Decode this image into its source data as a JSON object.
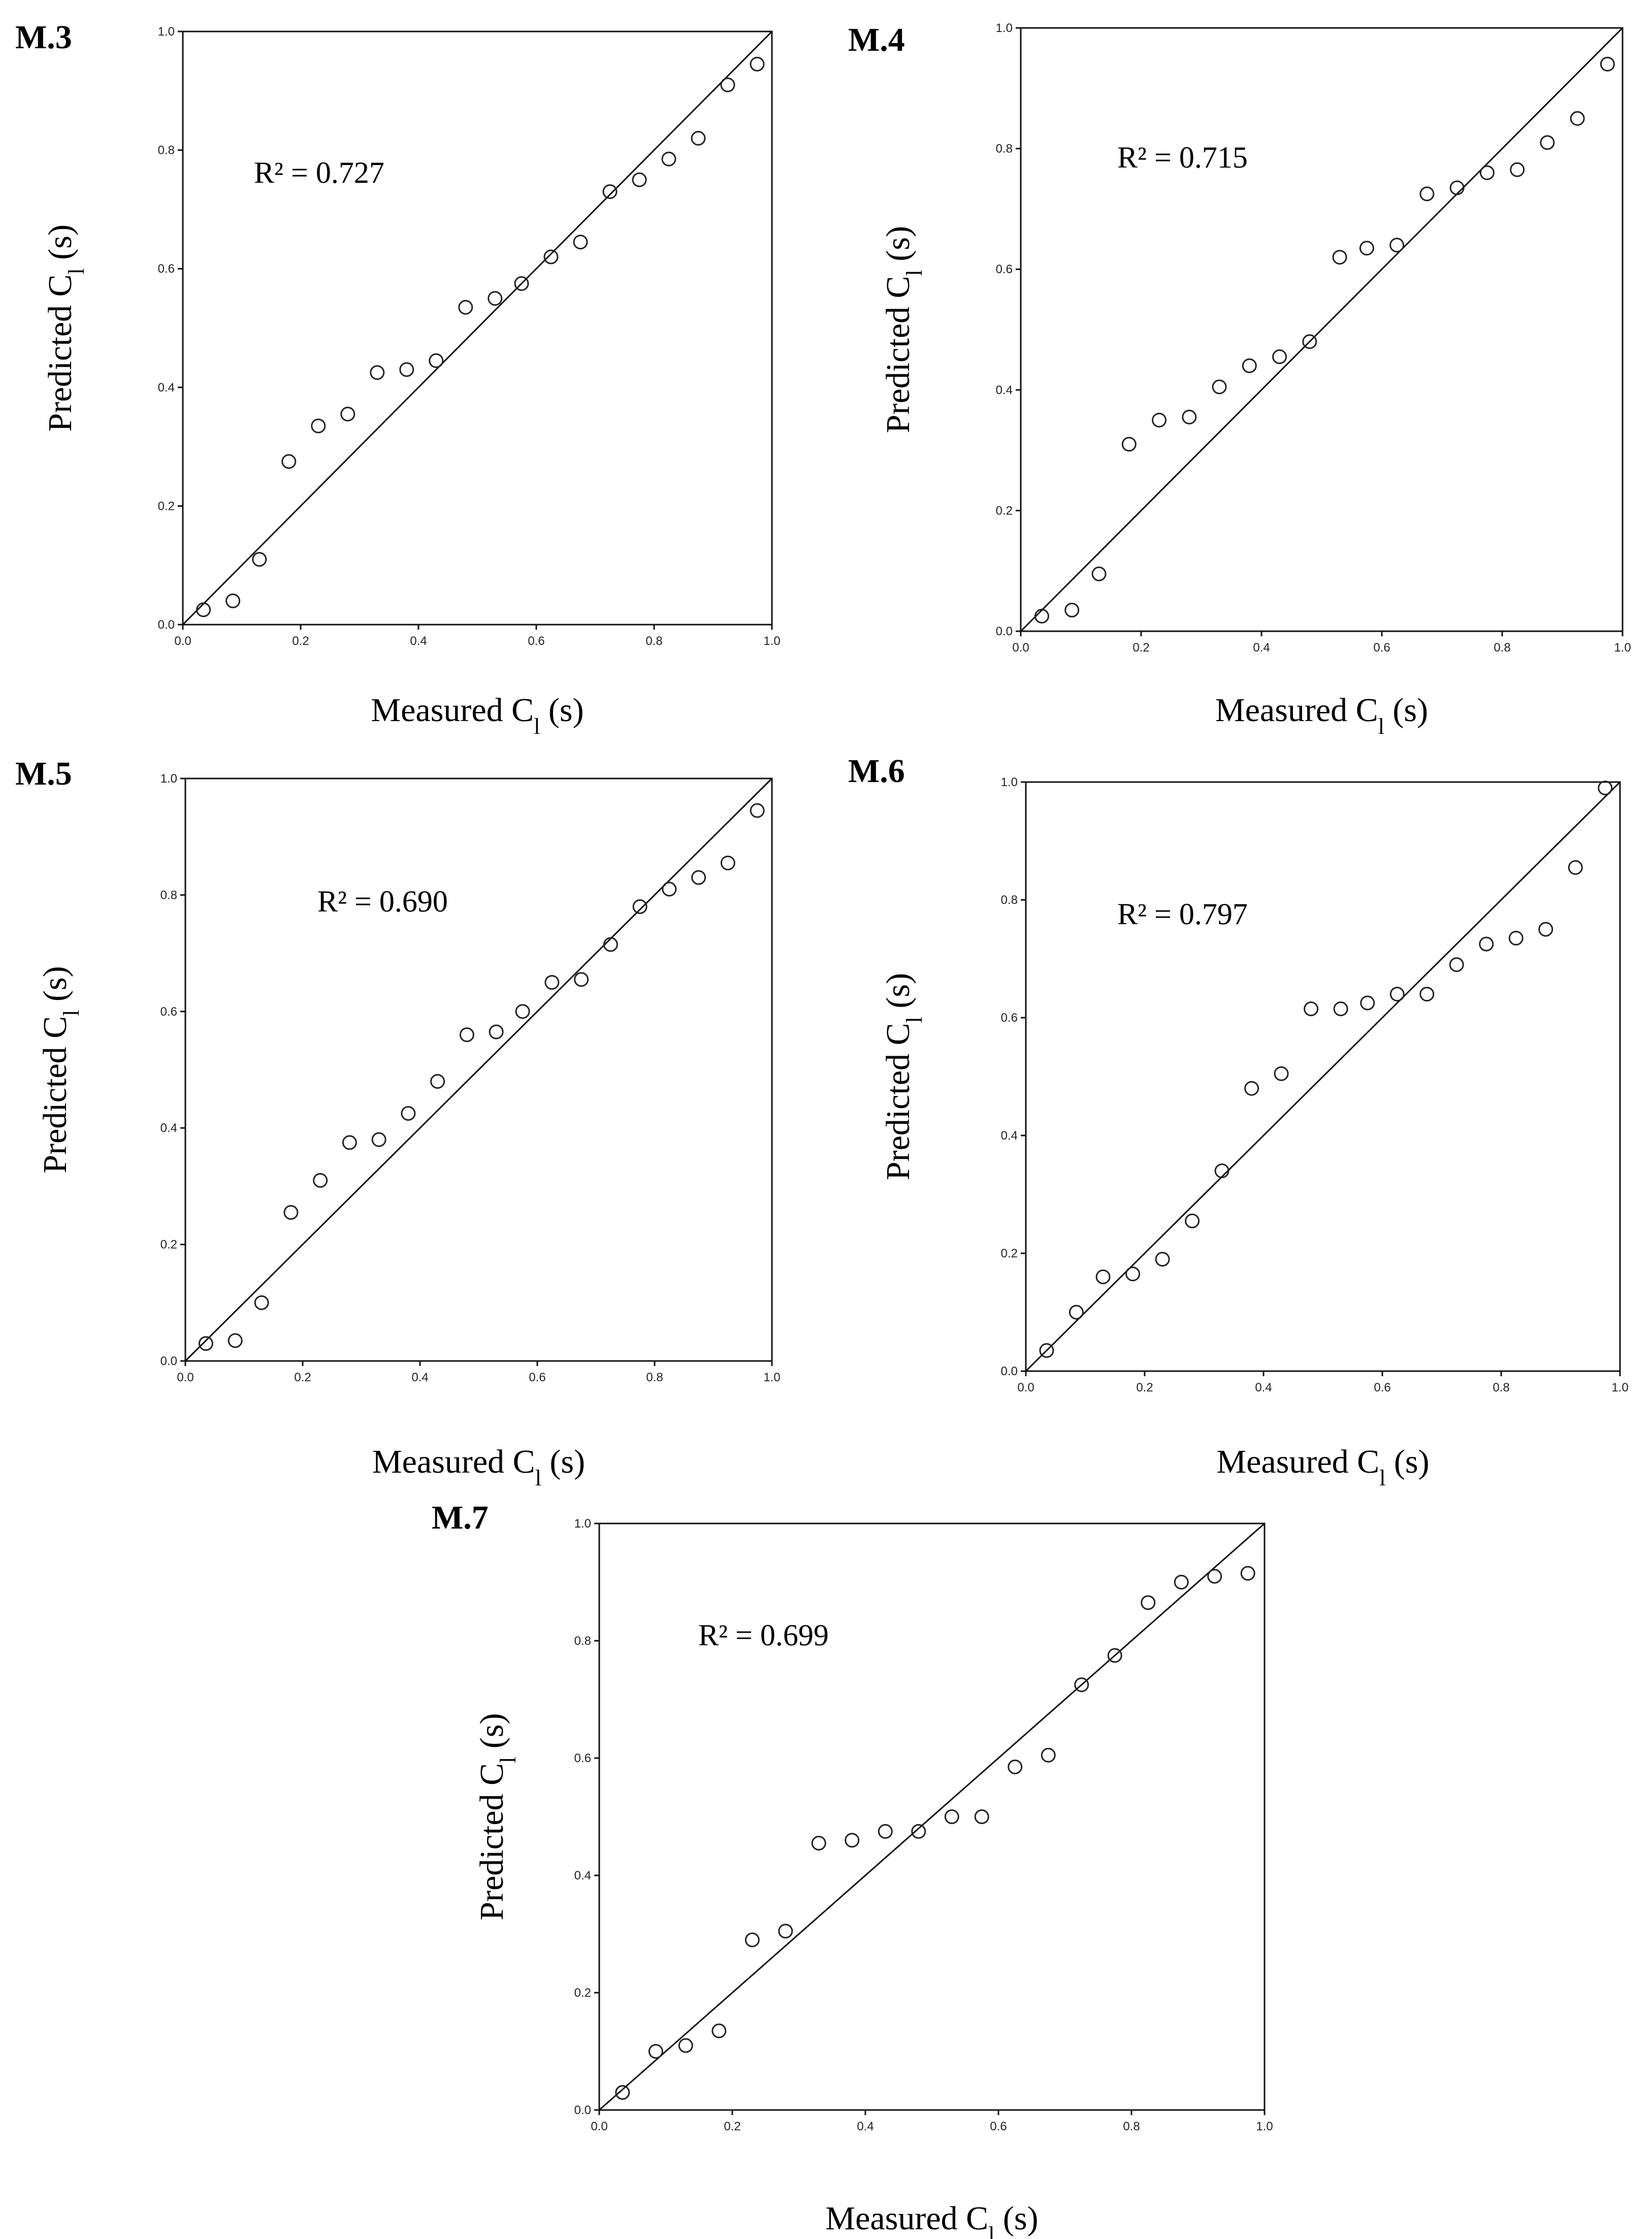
{
  "chart_data": [
    {
      "type": "scatter",
      "panel": "M.3",
      "r2_text": "R² = 0.727",
      "xlabel": "Measured C",
      "ylabel": "Predicted C",
      "subscript": "l",
      "unit": " (s)",
      "xlim": [
        0,
        1
      ],
      "ylim": [
        0,
        1
      ],
      "xticks": [
        "0.0",
        "0.2",
        "0.4",
        "0.6",
        "0.8",
        "1.0"
      ],
      "yticks": [
        "0.0",
        "0.2",
        "0.4",
        "0.6",
        "0.8",
        "1.0"
      ],
      "reference_line": "y = x",
      "x": [
        0.035,
        0.085,
        0.13,
        0.18,
        0.23,
        0.28,
        0.33,
        0.38,
        0.43,
        0.48,
        0.53,
        0.575,
        0.625,
        0.675,
        0.725,
        0.775,
        0.825,
        0.875,
        0.925,
        0.975
      ],
      "y": [
        0.025,
        0.04,
        0.11,
        0.275,
        0.335,
        0.355,
        0.425,
        0.43,
        0.445,
        0.535,
        0.55,
        0.575,
        0.62,
        0.645,
        0.73,
        0.75,
        0.785,
        0.82,
        0.91,
        0.945
      ]
    },
    {
      "type": "scatter",
      "panel": "M.4",
      "r2_text": "R² = 0.715",
      "xlabel": "Measured C",
      "ylabel": "Predicted C",
      "subscript": "l",
      "unit": " (s)",
      "xlim": [
        0,
        1
      ],
      "ylim": [
        0,
        1
      ],
      "xticks": [
        "0.0",
        "0.2",
        "0.4",
        "0.6",
        "0.8",
        "1.0"
      ],
      "yticks": [
        "0.0",
        "0.2",
        "0.4",
        "0.6",
        "0.8",
        "1.0"
      ],
      "reference_line": "y = x",
      "x": [
        0.035,
        0.085,
        0.13,
        0.18,
        0.23,
        0.28,
        0.33,
        0.38,
        0.43,
        0.48,
        0.53,
        0.575,
        0.625,
        0.675,
        0.725,
        0.775,
        0.825,
        0.875,
        0.925,
        0.975
      ],
      "y": [
        0.025,
        0.035,
        0.095,
        0.31,
        0.35,
        0.355,
        0.405,
        0.44,
        0.455,
        0.48,
        0.62,
        0.635,
        0.64,
        0.725,
        0.735,
        0.76,
        0.765,
        0.81,
        0.85,
        0.94
      ]
    },
    {
      "type": "scatter",
      "panel": "M.5",
      "r2_text": "R² = 0.690",
      "xlabel": "Measured C",
      "ylabel": "Predicted C",
      "subscript": "l",
      "unit": " (s)",
      "xlim": [
        0,
        1
      ],
      "ylim": [
        0,
        1
      ],
      "xticks": [
        "0.0",
        "0.2",
        "0.4",
        "0.6",
        "0.8",
        "1.0"
      ],
      "yticks": [
        "0.0",
        "0.2",
        "0.4",
        "0.6",
        "0.8",
        "1.0"
      ],
      "reference_line": "y = x",
      "x": [
        0.035,
        0.085,
        0.13,
        0.18,
        0.23,
        0.28,
        0.33,
        0.38,
        0.43,
        0.48,
        0.53,
        0.575,
        0.625,
        0.675,
        0.725,
        0.775,
        0.825,
        0.875,
        0.925,
        0.975
      ],
      "y": [
        0.03,
        0.035,
        0.1,
        0.255,
        0.31,
        0.375,
        0.38,
        0.425,
        0.48,
        0.56,
        0.565,
        0.6,
        0.65,
        0.655,
        0.715,
        0.78,
        0.81,
        0.83,
        0.855,
        0.945
      ]
    },
    {
      "type": "scatter",
      "panel": "M.6",
      "r2_text": "R² = 0.797",
      "xlabel": "Measured C",
      "ylabel": "Predicted C",
      "subscript": "l",
      "unit": " (s)",
      "xlim": [
        0,
        1
      ],
      "ylim": [
        0,
        1
      ],
      "xticks": [
        "0.0",
        "0.2",
        "0.4",
        "0.6",
        "0.8",
        "1.0"
      ],
      "yticks": [
        "0.0",
        "0.2",
        "0.4",
        "0.6",
        "0.8",
        "1.0"
      ],
      "reference_line": "y = x",
      "x": [
        0.035,
        0.085,
        0.13,
        0.18,
        0.23,
        0.28,
        0.33,
        0.38,
        0.43,
        0.48,
        0.53,
        0.575,
        0.625,
        0.675,
        0.725,
        0.775,
        0.825,
        0.875,
        0.925,
        0.975
      ],
      "y": [
        0.035,
        0.1,
        0.16,
        0.165,
        0.19,
        0.255,
        0.34,
        0.48,
        0.505,
        0.615,
        0.615,
        0.625,
        0.64,
        0.64,
        0.69,
        0.725,
        0.735,
        0.75,
        0.855,
        0.99
      ]
    },
    {
      "type": "scatter",
      "panel": "M.7",
      "r2_text": "R² = 0.699",
      "xlabel": "Measured C",
      "ylabel": "Predicted C",
      "subscript": "l",
      "unit": " (s)",
      "xlim": [
        0,
        1
      ],
      "ylim": [
        0,
        1
      ],
      "xticks": [
        "0.0",
        "0.2",
        "0.4",
        "0.6",
        "0.8",
        "1.0"
      ],
      "yticks": [
        "0.0",
        "0.2",
        "0.4",
        "0.6",
        "0.8",
        "1.0"
      ],
      "reference_line": "y = x",
      "x": [
        0.035,
        0.085,
        0.13,
        0.18,
        0.23,
        0.28,
        0.33,
        0.38,
        0.43,
        0.48,
        0.53,
        0.575,
        0.625,
        0.675,
        0.725,
        0.775,
        0.825,
        0.875,
        0.925,
        0.975
      ],
      "y": [
        0.03,
        0.1,
        0.11,
        0.135,
        0.29,
        0.305,
        0.455,
        0.46,
        0.475,
        0.475,
        0.5,
        0.5,
        0.585,
        0.605,
        0.725,
        0.775,
        0.865,
        0.9,
        0.91,
        0.915
      ]
    }
  ]
}
